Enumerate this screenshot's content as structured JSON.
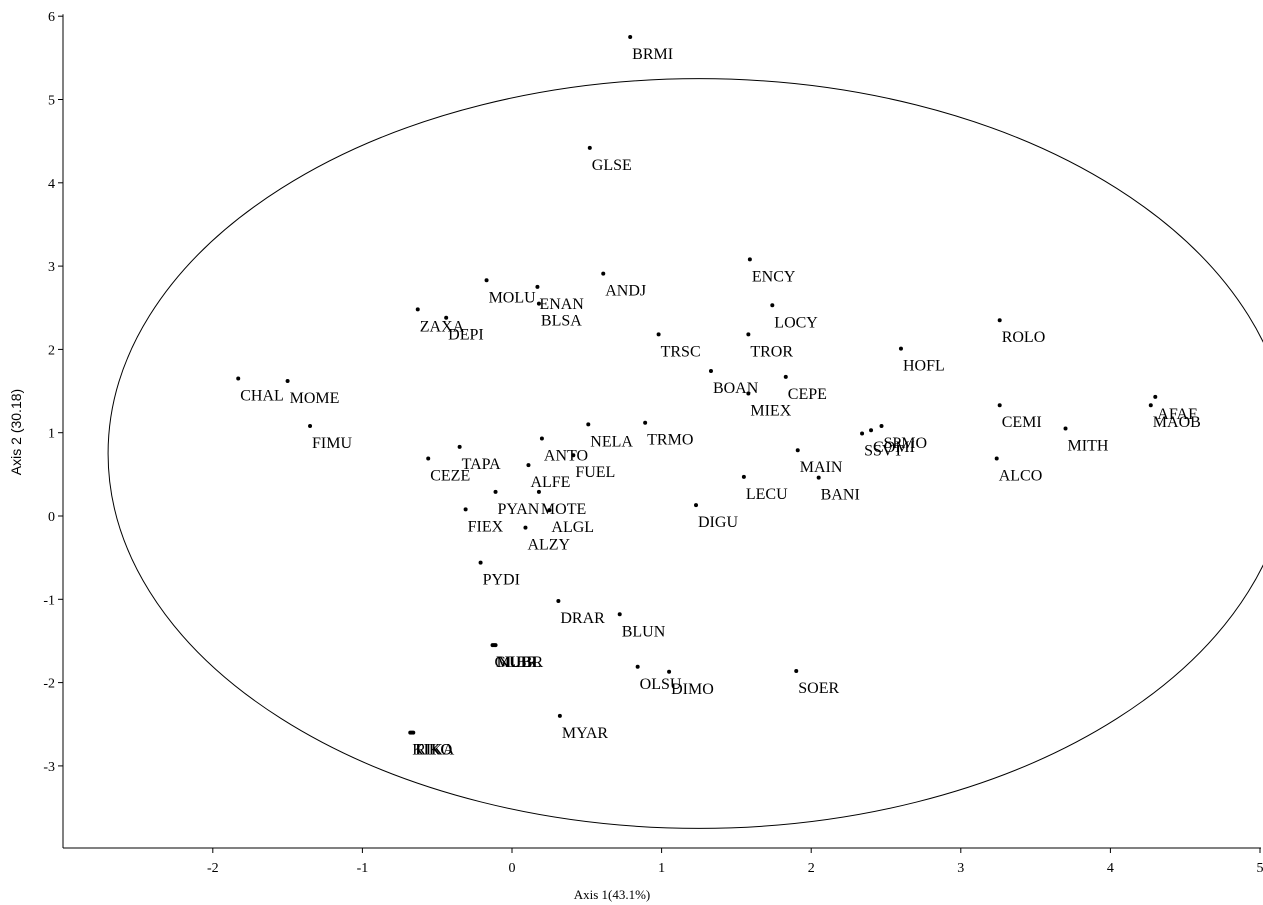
{
  "chart_data": {
    "type": "scatter",
    "title": "",
    "xlabel": "Axis 1(43.1%)",
    "ylabel": "Axis 2 (30.18)",
    "xlim": [
      -3,
      5
    ],
    "ylim": [
      -4,
      6
    ],
    "x_ticks": [
      -2,
      -1,
      0,
      1,
      2,
      3,
      4,
      5
    ],
    "y_ticks": [
      -3,
      -2,
      -1,
      0,
      1,
      2,
      3,
      4,
      5,
      6
    ],
    "grid": false,
    "legend": "none",
    "confidence_ellipse": {
      "center": [
        1.25,
        0.75
      ],
      "semi_axis_x": 3.95,
      "semi_axis_y": 4.5
    },
    "points": [
      {
        "label": "BRMI",
        "x": 0.79,
        "y": 5.75
      },
      {
        "label": "GLSE",
        "x": 0.52,
        "y": 4.42
      },
      {
        "label": "ENCY",
        "x": 1.59,
        "y": 3.08
      },
      {
        "label": "ANDJ",
        "x": 0.61,
        "y": 2.91
      },
      {
        "label": "MOLU",
        "x": -0.17,
        "y": 2.83
      },
      {
        "label": "ENAN",
        "x": 0.17,
        "y": 2.75
      },
      {
        "label": "BLSA",
        "x": 0.18,
        "y": 2.55
      },
      {
        "label": "LOCY",
        "x": 1.74,
        "y": 2.53
      },
      {
        "label": "ZAXA",
        "x": -0.63,
        "y": 2.48
      },
      {
        "label": "DEPI",
        "x": -0.44,
        "y": 2.38
      },
      {
        "label": "ROLO",
        "x": 3.26,
        "y": 2.35
      },
      {
        "label": "TRSC",
        "x": 0.98,
        "y": 2.18
      },
      {
        "label": "TROR",
        "x": 1.58,
        "y": 2.18
      },
      {
        "label": "HOFL",
        "x": 2.6,
        "y": 2.01
      },
      {
        "label": "BOAN",
        "x": 1.33,
        "y": 1.74
      },
      {
        "label": "CEPE",
        "x": 1.83,
        "y": 1.67
      },
      {
        "label": "CHAL",
        "x": -1.83,
        "y": 1.65
      },
      {
        "label": "MOME",
        "x": -1.5,
        "y": 1.62
      },
      {
        "label": "MIEX",
        "x": 1.58,
        "y": 1.47
      },
      {
        "label": "AFAF",
        "x": 4.3,
        "y": 1.43
      },
      {
        "label": "MAOB",
        "x": 4.27,
        "y": 1.33
      },
      {
        "label": "CEMI",
        "x": 3.26,
        "y": 1.33
      },
      {
        "label": "TRMO",
        "x": 0.89,
        "y": 1.12
      },
      {
        "label": "NELA",
        "x": 0.51,
        "y": 1.1
      },
      {
        "label": "FIMU",
        "x": -1.35,
        "y": 1.08
      },
      {
        "label": "SPMO",
        "x": 2.47,
        "y": 1.08
      },
      {
        "label": "MITH",
        "x": 3.7,
        "y": 1.05
      },
      {
        "label": "COMI",
        "x": 2.4,
        "y": 1.03
      },
      {
        "label": "SSVT",
        "x": 2.34,
        "y": 0.99
      },
      {
        "label": "ANTO",
        "x": 0.2,
        "y": 0.93
      },
      {
        "label": "TAPA",
        "x": -0.35,
        "y": 0.83
      },
      {
        "label": "MAIN",
        "x": 1.91,
        "y": 0.79
      },
      {
        "label": "FUEL",
        "x": 0.41,
        "y": 0.73
      },
      {
        "label": "ALCO",
        "x": 3.24,
        "y": 0.69
      },
      {
        "label": "CEZE",
        "x": -0.56,
        "y": 0.69
      },
      {
        "label": "ALFE",
        "x": 0.11,
        "y": 0.61
      },
      {
        "label": "LECU",
        "x": 1.55,
        "y": 0.47
      },
      {
        "label": "BANI",
        "x": 2.05,
        "y": 0.46
      },
      {
        "label": "PYAN",
        "x": -0.11,
        "y": 0.29
      },
      {
        "label": "MOTE",
        "x": 0.18,
        "y": 0.29
      },
      {
        "label": "DIGU",
        "x": 1.23,
        "y": 0.13
      },
      {
        "label": "FIEX",
        "x": -0.31,
        "y": 0.08
      },
      {
        "label": "ALGL",
        "x": 0.25,
        "y": 0.07
      },
      {
        "label": "ALZY",
        "x": 0.09,
        "y": -0.14
      },
      {
        "label": "PYDI",
        "x": -0.21,
        "y": -0.56
      },
      {
        "label": "DRAR",
        "x": 0.31,
        "y": -1.02
      },
      {
        "label": "BLUN",
        "x": 0.72,
        "y": -1.18
      },
      {
        "label": "GLBR",
        "x": -0.13,
        "y": -1.55
      },
      {
        "label": "MUBR",
        "x": -0.12,
        "y": -1.55
      },
      {
        "label": "NUBL",
        "x": -0.11,
        "y": -1.55
      },
      {
        "label": "OLSU",
        "x": 0.84,
        "y": -1.81
      },
      {
        "label": "DIMO",
        "x": 1.05,
        "y": -1.87
      },
      {
        "label": "SOER",
        "x": 1.9,
        "y": -1.86
      },
      {
        "label": "MYAR",
        "x": 0.32,
        "y": -2.4
      },
      {
        "label": "KIKO",
        "x": -0.68,
        "y": -2.6
      },
      {
        "label": "TIKO",
        "x": -0.67,
        "y": -2.6
      },
      {
        "label": "RIKA",
        "x": -0.66,
        "y": -2.6
      }
    ]
  }
}
